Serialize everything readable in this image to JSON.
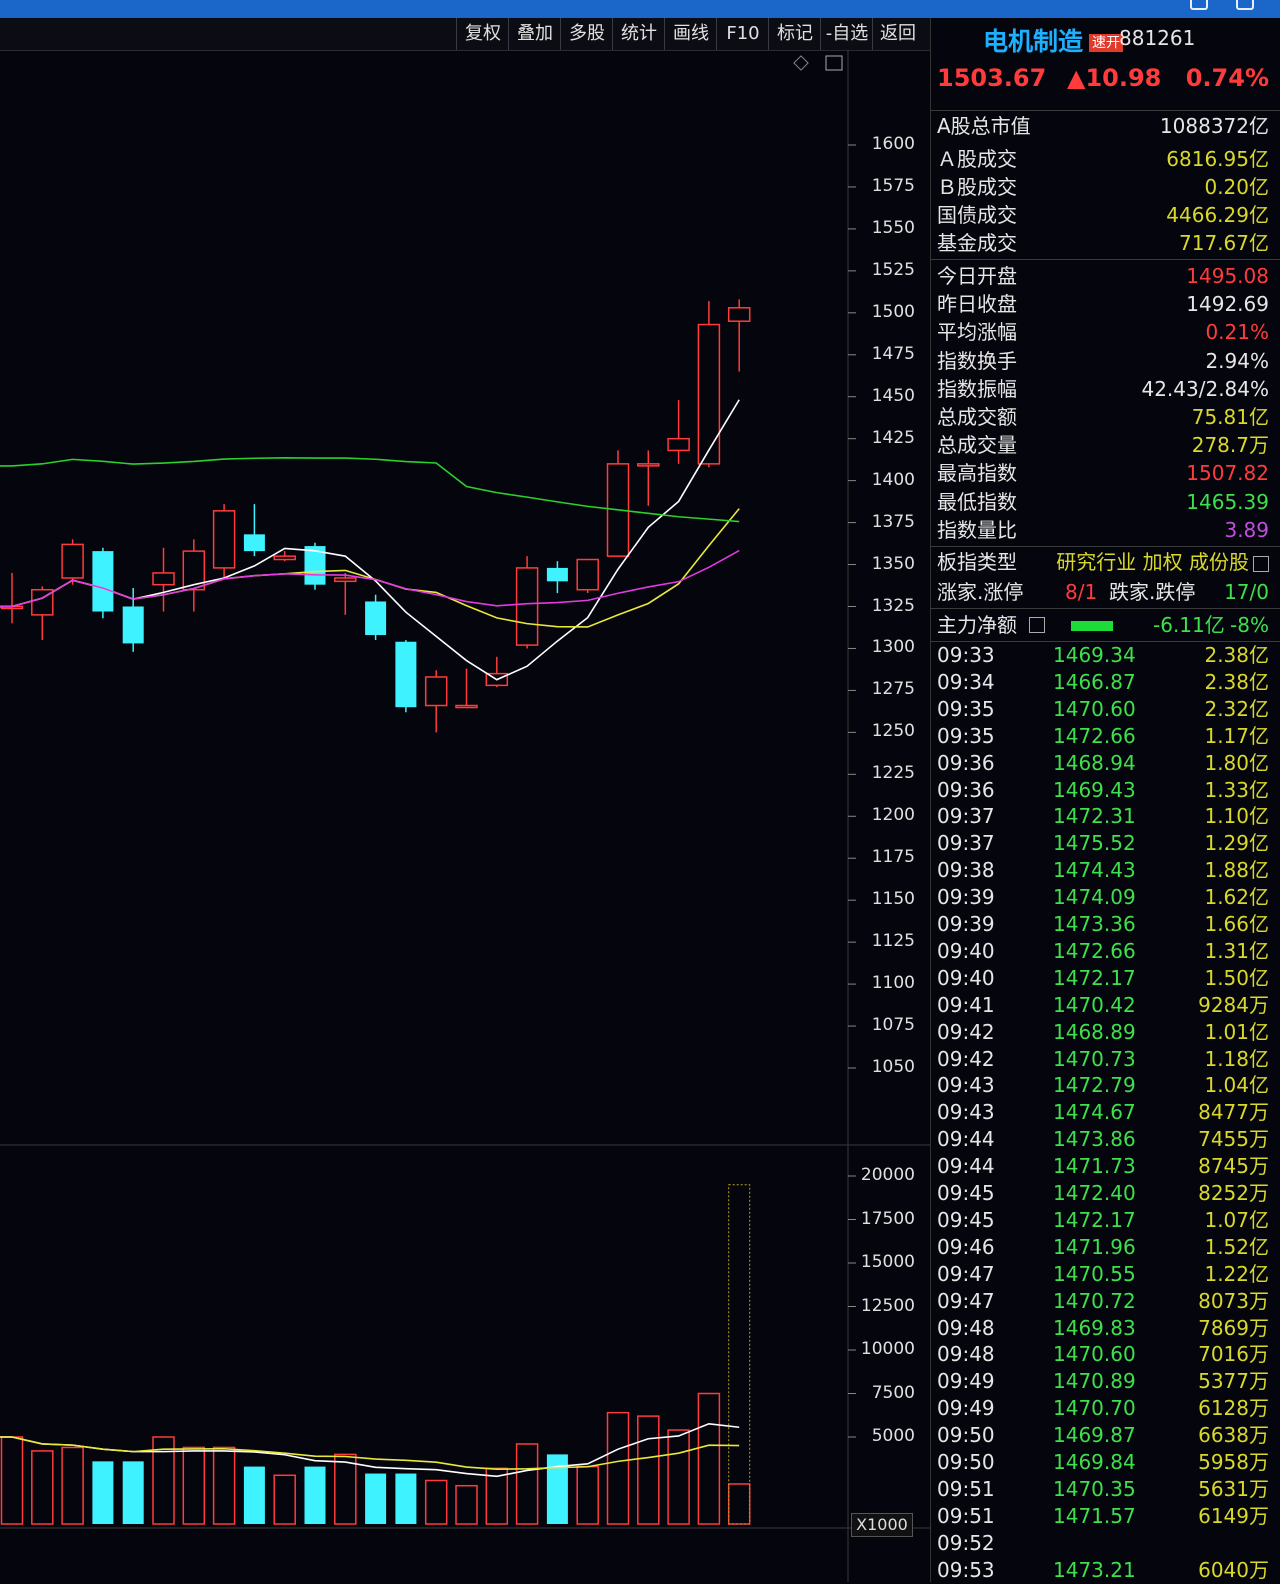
{
  "toolbar": {
    "buttons": [
      "复权",
      "叠加",
      "多股",
      "统计",
      "画线",
      "F10",
      "标记",
      "-自选",
      "返回"
    ]
  },
  "chart": {
    "price_axis_labels": [
      "1600",
      "1575",
      "1550",
      "1525",
      "1500",
      "1475",
      "1450",
      "1425",
      "1400",
      "1375",
      "1350",
      "1325",
      "1300",
      "1275",
      "1250",
      "1225",
      "1200",
      "1175",
      "1150",
      "1125",
      "1100",
      "1075",
      "1050"
    ],
    "volume_axis_labels": [
      "20000",
      "17500",
      "15000",
      "12500",
      "10000",
      "7500",
      "5000"
    ],
    "volume_unit": "X1000"
  },
  "chart_data": {
    "type": "candlestick",
    "price_range": [
      1050,
      1600
    ],
    "volume_range": [
      0,
      20000
    ],
    "candles": [
      {
        "o": 1325,
        "c": 1325,
        "h": 1345,
        "l": 1315,
        "v": 5000
      },
      {
        "o": 1320,
        "c": 1335,
        "h": 1337,
        "l": 1305,
        "v": 4200
      },
      {
        "o": 1342,
        "c": 1362,
        "h": 1365,
        "l": 1338,
        "v": 4400
      },
      {
        "o": 1358,
        "c": 1322,
        "h": 1360,
        "l": 1318,
        "v": 3600
      },
      {
        "o": 1325,
        "c": 1303,
        "h": 1336,
        "l": 1298,
        "v": 3600
      },
      {
        "o": 1338,
        "c": 1345,
        "h": 1360,
        "l": 1322,
        "v": 5000
      },
      {
        "o": 1335,
        "c": 1358,
        "h": 1365,
        "l": 1322,
        "v": 4400
      },
      {
        "o": 1348,
        "c": 1382,
        "h": 1386,
        "l": 1342,
        "v": 4400
      },
      {
        "o": 1368,
        "c": 1358,
        "h": 1386,
        "l": 1355,
        "v": 3300
      },
      {
        "o": 1353,
        "c": 1355,
        "h": 1358,
        "l": 1352,
        "v": 2800
      },
      {
        "o": 1361,
        "c": 1338,
        "h": 1363,
        "l": 1335,
        "v": 3300
      },
      {
        "o": 1340,
        "c": 1342,
        "h": 1345,
        "l": 1320,
        "v": 4000
      },
      {
        "o": 1328,
        "c": 1308,
        "h": 1332,
        "l": 1305,
        "v": 2900
      },
      {
        "o": 1304,
        "c": 1265,
        "h": 1305,
        "l": 1262,
        "v": 2900
      },
      {
        "o": 1266,
        "c": 1283,
        "h": 1287,
        "l": 1250,
        "v": 2500
      },
      {
        "o": 1266,
        "c": 1266,
        "h": 1288,
        "l": 1265,
        "v": 2200
      },
      {
        "o": 1278,
        "c": 1285,
        "h": 1295,
        "l": 1277,
        "v": 3200
      },
      {
        "o": 1302,
        "c": 1348,
        "h": 1355,
        "l": 1300,
        "v": 4600
      },
      {
        "o": 1348,
        "c": 1340,
        "h": 1352,
        "l": 1333,
        "v": 4000
      },
      {
        "o": 1335,
        "c": 1353,
        "h": 1353,
        "l": 1333,
        "v": 3300
      },
      {
        "o": 1355,
        "c": 1410,
        "h": 1418,
        "l": 1355,
        "v": 6400
      },
      {
        "o": 1410,
        "c": 1410,
        "h": 1418,
        "l": 1385,
        "v": 6200
      },
      {
        "o": 1418,
        "c": 1425,
        "h": 1448,
        "l": 1410,
        "v": 5400
      },
      {
        "o": 1410,
        "c": 1493,
        "h": 1507,
        "l": 1408,
        "v": 7500
      },
      {
        "o": 1495,
        "c": 1503,
        "h": 1508,
        "l": 1465,
        "v": 2300
      }
    ],
    "current_volume_estimate": 19500
  },
  "panel": {
    "title": "电机制造",
    "badge": "速开",
    "code": "881261",
    "price": "1503.67",
    "change": "▲10.98",
    "change_pct": "0.74%",
    "market": [
      {
        "label": "A股总市值",
        "value": "1088372亿",
        "color": "#e6e6e6"
      },
      {
        "label": "Ａ股成交",
        "value": "6816.95亿",
        "color": "#d9d92c"
      },
      {
        "label": "Ｂ股成交",
        "value": "0.20亿",
        "color": "#d9d92c"
      },
      {
        "label": "国债成交",
        "value": "4466.29亿",
        "color": "#d9d92c"
      },
      {
        "label": "基金成交",
        "value": "717.67亿",
        "color": "#d9d92c"
      }
    ],
    "stats": [
      {
        "label": "今日开盘",
        "value": "1495.08",
        "color": "#ff3b3b"
      },
      {
        "label": "昨日收盘",
        "value": "1492.69",
        "color": "#e6e6e6"
      },
      {
        "label": "平均涨幅",
        "value": "0.21%",
        "color": "#ff3b3b"
      },
      {
        "label": "指数换手",
        "value": "2.94%",
        "color": "#e6e6e6"
      },
      {
        "label": "指数振幅",
        "value": "42.43/2.84%",
        "color": "#e6e6e6"
      },
      {
        "label": "总成交额",
        "value": "75.81亿",
        "color": "#d9d92c"
      },
      {
        "label": "总成交量",
        "value": "278.7万",
        "color": "#d9d92c"
      },
      {
        "label": "最高指数",
        "value": "1507.82",
        "color": "#ff3b3b"
      },
      {
        "label": "最低指数",
        "value": "1465.39",
        "color": "#3ee04b"
      },
      {
        "label": "指数量比",
        "value": "3.89",
        "color": "#c24ee0"
      }
    ],
    "board_type_label": "板指类型",
    "board_type_value": "研究行业 加权 成份股",
    "up_label": "涨家.涨停",
    "up_value": "8/1",
    "down_label": "跌家.跌停",
    "down_value": "17/0",
    "fund_label": "主力净额",
    "fund_value": "-6.11亿",
    "fund_pct": "-8%",
    "ticks": [
      [
        "09:33",
        "1469.34",
        "2.38亿"
      ],
      [
        "09:34",
        "1466.87",
        "2.38亿"
      ],
      [
        "09:35",
        "1470.60",
        "2.32亿"
      ],
      [
        "09:35",
        "1472.66",
        "1.17亿"
      ],
      [
        "09:36",
        "1468.94",
        "1.80亿"
      ],
      [
        "09:36",
        "1469.43",
        "1.33亿"
      ],
      [
        "09:37",
        "1472.31",
        "1.10亿"
      ],
      [
        "09:37",
        "1475.52",
        "1.29亿"
      ],
      [
        "09:38",
        "1474.43",
        "1.88亿"
      ],
      [
        "09:39",
        "1474.09",
        "1.62亿"
      ],
      [
        "09:39",
        "1473.36",
        "1.66亿"
      ],
      [
        "09:40",
        "1472.66",
        "1.31亿"
      ],
      [
        "09:40",
        "1472.17",
        "1.50亿"
      ],
      [
        "09:41",
        "1470.42",
        "9284万"
      ],
      [
        "09:42",
        "1468.89",
        "1.01亿"
      ],
      [
        "09:42",
        "1470.73",
        "1.18亿"
      ],
      [
        "09:43",
        "1472.79",
        "1.04亿"
      ],
      [
        "09:43",
        "1474.67",
        "8477万"
      ],
      [
        "09:44",
        "1473.86",
        "7455万"
      ],
      [
        "09:44",
        "1471.73",
        "8745万"
      ],
      [
        "09:45",
        "1472.40",
        "8252万"
      ],
      [
        "09:45",
        "1472.17",
        "1.07亿"
      ],
      [
        "09:46",
        "1471.96",
        "1.52亿"
      ],
      [
        "09:47",
        "1470.55",
        "1.22亿"
      ],
      [
        "09:47",
        "1470.72",
        "8073万"
      ],
      [
        "09:48",
        "1469.83",
        "7869万"
      ],
      [
        "09:48",
        "1470.60",
        "7016万"
      ],
      [
        "09:49",
        "1470.89",
        "5377万"
      ],
      [
        "09:49",
        "1470.70",
        "6128万"
      ],
      [
        "09:50",
        "1469.87",
        "6638万"
      ],
      [
        "09:50",
        "1469.84",
        "5958万"
      ],
      [
        "09:51",
        "1470.35",
        "5631万"
      ],
      [
        "09:51",
        "1471.57",
        "6149万"
      ],
      [
        "09:52",
        "",
        ""
      ],
      [
        "09:53",
        "1473.21",
        "6040万"
      ]
    ]
  }
}
